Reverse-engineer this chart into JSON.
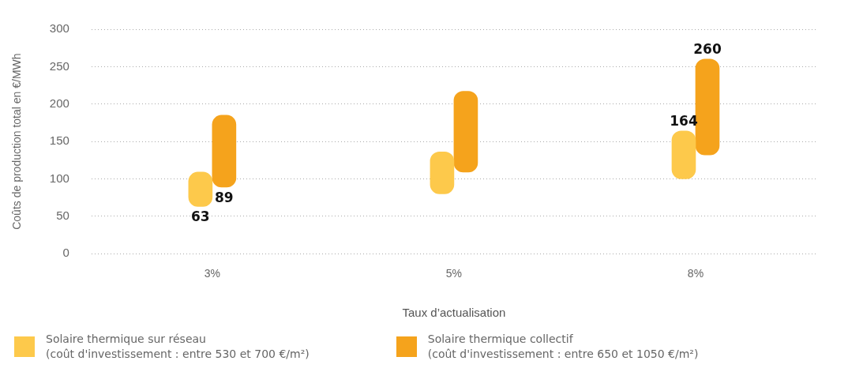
{
  "chart_data": {
    "type": "bar",
    "xlabel": "Taux d’actualisation",
    "ylabel": "Coûts de production total en €/MWh",
    "categories": [
      "3%",
      "5%",
      "8%"
    ],
    "series": [
      {
        "name": "Solaire thermique sur réseau\n(coût d'investissement : entre 530 et 700 €/m²)",
        "color": "#fdc94b",
        "base": [
          63,
          80,
          100
        ],
        "values": [
          46,
          56,
          64
        ]
      },
      {
        "name": "Solaire thermique collectif\n(coût d'investissement : entre 650 et 1050 €/m²)",
        "color": "#f5a31c",
        "base": [
          89,
          109,
          132
        ],
        "values": [
          96,
          108,
          128
        ]
      }
    ],
    "annotations": [
      {
        "text": "63",
        "x": "3%",
        "y": 63
      },
      {
        "text": "89",
        "x": "3%",
        "y": 89
      },
      {
        "text": "164",
        "x": "8%",
        "y": 164
      },
      {
        "text": "260",
        "x": "8%",
        "y": 260
      }
    ],
    "ylim": [
      0,
      300
    ],
    "yticks": [
      0,
      50,
      100,
      150,
      200,
      250,
      300
    ],
    "grid": "y",
    "legend": "bottom left"
  }
}
